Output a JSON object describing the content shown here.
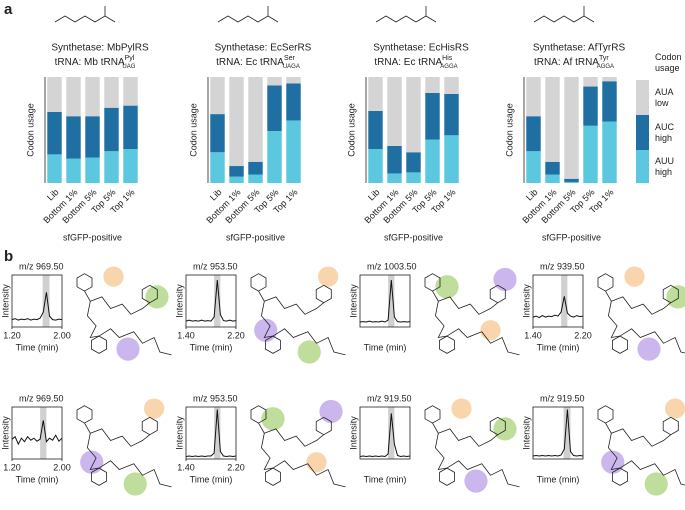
{
  "panel_labels": [
    "a",
    "b"
  ],
  "chart_data": [
    {
      "type": "bar",
      "title": "Synthetase: MbPylRS",
      "subtitle": "tRNA: Mb tRNA",
      "subtitle_sup": "Pyl",
      "subtitle_sub": "UAG",
      "ylabel": "Codon usage",
      "xlabel": "sfGFP-positive",
      "categories": [
        "Lib",
        "Bottom 1%",
        "Bottom 5%",
        "Top 5%",
        "Top 1%"
      ],
      "ylim": [
        0,
        1
      ],
      "stacked": true,
      "legend_title": "Codon usage",
      "series": [
        {
          "name": "AUU high",
          "color": "#5bc8e0",
          "values": [
            0.27,
            0.23,
            0.24,
            0.3,
            0.32
          ]
        },
        {
          "name": "AUC high",
          "color": "#1f6fa3",
          "values": [
            0.4,
            0.4,
            0.39,
            0.41,
            0.41
          ]
        },
        {
          "name": "AUA low",
          "color": "#d4d4d4",
          "values": [
            0.33,
            0.37,
            0.37,
            0.29,
            0.27
          ]
        }
      ]
    },
    {
      "type": "bar",
      "title": "Synthetase: EcSerRS",
      "subtitle": "tRNA: Ec tRNA",
      "subtitle_sup": "Ser",
      "subtitle_sub": "UAGA",
      "ylabel": "Codon usage",
      "xlabel": "sfGFP-positive",
      "categories": [
        "Lib",
        "Bottom 1%",
        "Bottom 5%",
        "Top 5%",
        "Top 1%"
      ],
      "ylim": [
        0,
        1
      ],
      "stacked": true,
      "series": [
        {
          "color": "#5bc8e0",
          "values": [
            0.29,
            0.06,
            0.08,
            0.49,
            0.59
          ]
        },
        {
          "color": "#1f6fa3",
          "values": [
            0.36,
            0.1,
            0.12,
            0.43,
            0.35
          ]
        },
        {
          "color": "#d4d4d4",
          "values": [
            0.35,
            0.84,
            0.8,
            0.08,
            0.06
          ]
        }
      ]
    },
    {
      "type": "bar",
      "title": "Synthetase: EcHisRS",
      "subtitle": "tRNA: Ec tRNA",
      "subtitle_sup": "His",
      "subtitle_sub": "AGGA",
      "ylabel": "Codon usage",
      "xlabel": "sfGFP-positive",
      "categories": [
        "Lib",
        "Bottom 1%",
        "Bottom 5%",
        "Top 5%",
        "Top 1%"
      ],
      "ylim": [
        0,
        1
      ],
      "stacked": true,
      "series": [
        {
          "color": "#5bc8e0",
          "values": [
            0.32,
            0.09,
            0.1,
            0.41,
            0.45
          ]
        },
        {
          "color": "#1f6fa3",
          "values": [
            0.36,
            0.26,
            0.19,
            0.44,
            0.39
          ]
        },
        {
          "color": "#d4d4d4",
          "values": [
            0.32,
            0.65,
            0.71,
            0.15,
            0.16
          ]
        }
      ]
    },
    {
      "type": "bar",
      "title": "Synthetase: AfTyrRS",
      "subtitle": "tRNA: Af tRNA",
      "subtitle_sup": "Tyr",
      "subtitle_sub": "AGGA",
      "ylabel": "Codon usage",
      "xlabel": "sfGFP-positive",
      "categories": [
        "Lib",
        "Bottom 1%",
        "Bottom 5%",
        "Top 5%",
        "Top 1%"
      ],
      "ylim": [
        0,
        1
      ],
      "stacked": true,
      "series": [
        {
          "color": "#5bc8e0",
          "values": [
            0.3,
            0.08,
            0.01,
            0.54,
            0.58
          ]
        },
        {
          "color": "#1f6fa3",
          "values": [
            0.33,
            0.12,
            0.03,
            0.37,
            0.38
          ]
        },
        {
          "color": "#d4d4d4",
          "values": [
            0.37,
            0.8,
            0.96,
            0.09,
            0.04
          ]
        }
      ]
    },
    {
      "type": "line",
      "title": "m/z 969.50",
      "ylabel": "Intensity",
      "xlabel": "Time (min)",
      "color": "#111111",
      "shade": [
        1.69,
        1.8
      ],
      "x": [
        1.2,
        1.25,
        1.3,
        1.35,
        1.4,
        1.45,
        1.5,
        1.55,
        1.6,
        1.65,
        1.7,
        1.75,
        1.8,
        1.85,
        1.9,
        1.95,
        2.0
      ],
      "values": [
        0.15,
        0.17,
        0.14,
        0.16,
        0.15,
        0.17,
        0.14,
        0.16,
        0.15,
        0.18,
        0.3,
        0.7,
        0.22,
        0.15,
        0.14,
        0.16,
        0.15
      ],
      "xlim": [
        1.2,
        2.0
      ],
      "ylim": [
        0,
        1.05
      ],
      "xticks": [
        {
          "value": 1.2,
          "label": "1.20"
        },
        {
          "value": 2.0,
          "label": "2.00"
        }
      ]
    },
    {
      "type": "line",
      "title": "m/z 953.50",
      "ylabel": "Intensity",
      "xlabel": "Time (min)",
      "color": "#111111",
      "shade": [
        1.85,
        1.95
      ],
      "x": [
        1.4,
        1.45,
        1.5,
        1.55,
        1.6,
        1.65,
        1.7,
        1.75,
        1.8,
        1.85,
        1.9,
        1.95,
        2.0,
        2.05,
        2.1,
        2.15,
        2.2
      ],
      "values": [
        0.12,
        0.14,
        0.12,
        0.13,
        0.12,
        0.14,
        0.12,
        0.13,
        0.12,
        0.2,
        0.95,
        0.25,
        0.13,
        0.12,
        0.14,
        0.12,
        0.13
      ],
      "xlim": [
        1.4,
        2.2
      ],
      "ylim": [
        0,
        1.05
      ],
      "xticks": [
        {
          "value": 1.4,
          "label": "1.40"
        },
        {
          "value": 2.2,
          "label": "2.20"
        }
      ]
    },
    {
      "type": "line",
      "title": "m/z 1003.50",
      "ylabel": "Intensity",
      "xlabel": "Time (min)",
      "color": "#111111",
      "shade": [
        1.65,
        1.75
      ],
      "x": [
        1.2,
        1.25,
        1.3,
        1.35,
        1.4,
        1.45,
        1.5,
        1.55,
        1.6,
        1.65,
        1.7,
        1.75,
        1.8,
        1.85,
        1.9,
        1.95,
        2.0
      ],
      "values": [
        0.1,
        0.11,
        0.1,
        0.12,
        0.1,
        0.11,
        0.1,
        0.12,
        0.1,
        0.14,
        0.95,
        0.2,
        0.11,
        0.1,
        0.11,
        0.1,
        0.11
      ],
      "xlim": [
        1.2,
        2.0
      ],
      "ylim": [
        0,
        1.05
      ],
      "xticks": []
    },
    {
      "type": "line",
      "title": "m/z 939.50",
      "ylabel": "Intensity",
      "xlabel": "Time (min)",
      "color": "#111111",
      "shade": [
        1.85,
        1.95
      ],
      "x": [
        1.4,
        1.45,
        1.5,
        1.55,
        1.6,
        1.65,
        1.7,
        1.75,
        1.8,
        1.85,
        1.9,
        1.95,
        2.0,
        2.05,
        2.1,
        2.15,
        2.2
      ],
      "values": [
        0.2,
        0.22,
        0.19,
        0.23,
        0.2,
        0.22,
        0.21,
        0.24,
        0.22,
        0.3,
        0.62,
        0.28,
        0.22,
        0.2,
        0.23,
        0.21,
        0.22
      ],
      "xlim": [
        1.4,
        2.2
      ],
      "ylim": [
        0,
        1.05
      ],
      "xticks": [
        {
          "value": 1.4,
          "label": "1.40"
        },
        {
          "value": 2.2,
          "label": "2.20"
        }
      ]
    },
    {
      "type": "line",
      "title": "m/z 969.50",
      "ylabel": "Intensity",
      "xlabel": "Time (min)",
      "color": "#111111",
      "shade": [
        1.65,
        1.75
      ],
      "x": [
        1.2,
        1.25,
        1.3,
        1.35,
        1.4,
        1.45,
        1.5,
        1.55,
        1.6,
        1.65,
        1.7,
        1.75,
        1.8,
        1.85,
        1.9,
        1.95,
        2.0
      ],
      "values": [
        0.4,
        0.45,
        0.3,
        0.42,
        0.35,
        0.45,
        0.38,
        0.42,
        0.36,
        0.4,
        0.78,
        0.35,
        0.42,
        0.38,
        0.48,
        0.36,
        0.42
      ],
      "xlim": [
        1.2,
        2.0
      ],
      "ylim": [
        0,
        1.05
      ],
      "xticks": [
        {
          "value": 1.2,
          "label": "1.20"
        },
        {
          "value": 2.0,
          "label": "2.00"
        }
      ]
    },
    {
      "type": "line",
      "title": "m/z 953.50",
      "ylabel": "Intensity",
      "xlabel": "Time (min)",
      "color": "#111111",
      "shade": [
        1.85,
        1.95
      ],
      "x": [
        1.4,
        1.45,
        1.5,
        1.55,
        1.6,
        1.65,
        1.7,
        1.75,
        1.8,
        1.85,
        1.9,
        1.95,
        2.0,
        2.05,
        2.1,
        2.15,
        2.2
      ],
      "values": [
        0.05,
        0.06,
        0.05,
        0.06,
        0.05,
        0.06,
        0.05,
        0.06,
        0.06,
        0.12,
        1.0,
        0.15,
        0.06,
        0.05,
        0.06,
        0.05,
        0.06
      ],
      "xlim": [
        1.4,
        2.2
      ],
      "ylim": [
        0,
        1.05
      ],
      "xticks": [
        {
          "value": 1.4,
          "label": "1.40"
        },
        {
          "value": 2.2,
          "label": "2.20"
        }
      ]
    },
    {
      "type": "line",
      "title": "m/z 919.50",
      "ylabel": "Intensity",
      "xlabel": "Time (min)",
      "color": "#111111",
      "shade": [
        1.65,
        1.75
      ],
      "x": [
        1.2,
        1.25,
        1.3,
        1.35,
        1.4,
        1.45,
        1.5,
        1.55,
        1.6,
        1.65,
        1.7,
        1.75,
        1.8,
        1.85,
        1.9,
        1.95,
        2.0
      ],
      "values": [
        0.05,
        0.06,
        0.05,
        0.06,
        0.05,
        0.06,
        0.05,
        0.06,
        0.05,
        0.1,
        0.92,
        0.3,
        0.07,
        0.05,
        0.06,
        0.05,
        0.06
      ],
      "xlim": [
        1.2,
        2.0
      ],
      "ylim": [
        0,
        1.05
      ],
      "xticks": []
    },
    {
      "type": "line",
      "title": "m/z 919.50",
      "ylabel": "Intensity",
      "xlabel": "Time (min)",
      "color": "#111111",
      "shade": [
        1.69,
        1.8
      ],
      "x": [
        1.2,
        1.25,
        1.3,
        1.35,
        1.4,
        1.45,
        1.5,
        1.55,
        1.6,
        1.65,
        1.7,
        1.75,
        1.8,
        1.85,
        1.9,
        1.95,
        2.0
      ],
      "values": [
        0.06,
        0.07,
        0.06,
        0.07,
        0.06,
        0.07,
        0.06,
        0.07,
        0.06,
        0.08,
        0.2,
        1.0,
        0.15,
        0.07,
        0.06,
        0.07,
        0.06
      ],
      "xlim": [
        1.2,
        2.0
      ],
      "ylim": [
        0,
        1.05
      ],
      "xticks": []
    }
  ]
}
